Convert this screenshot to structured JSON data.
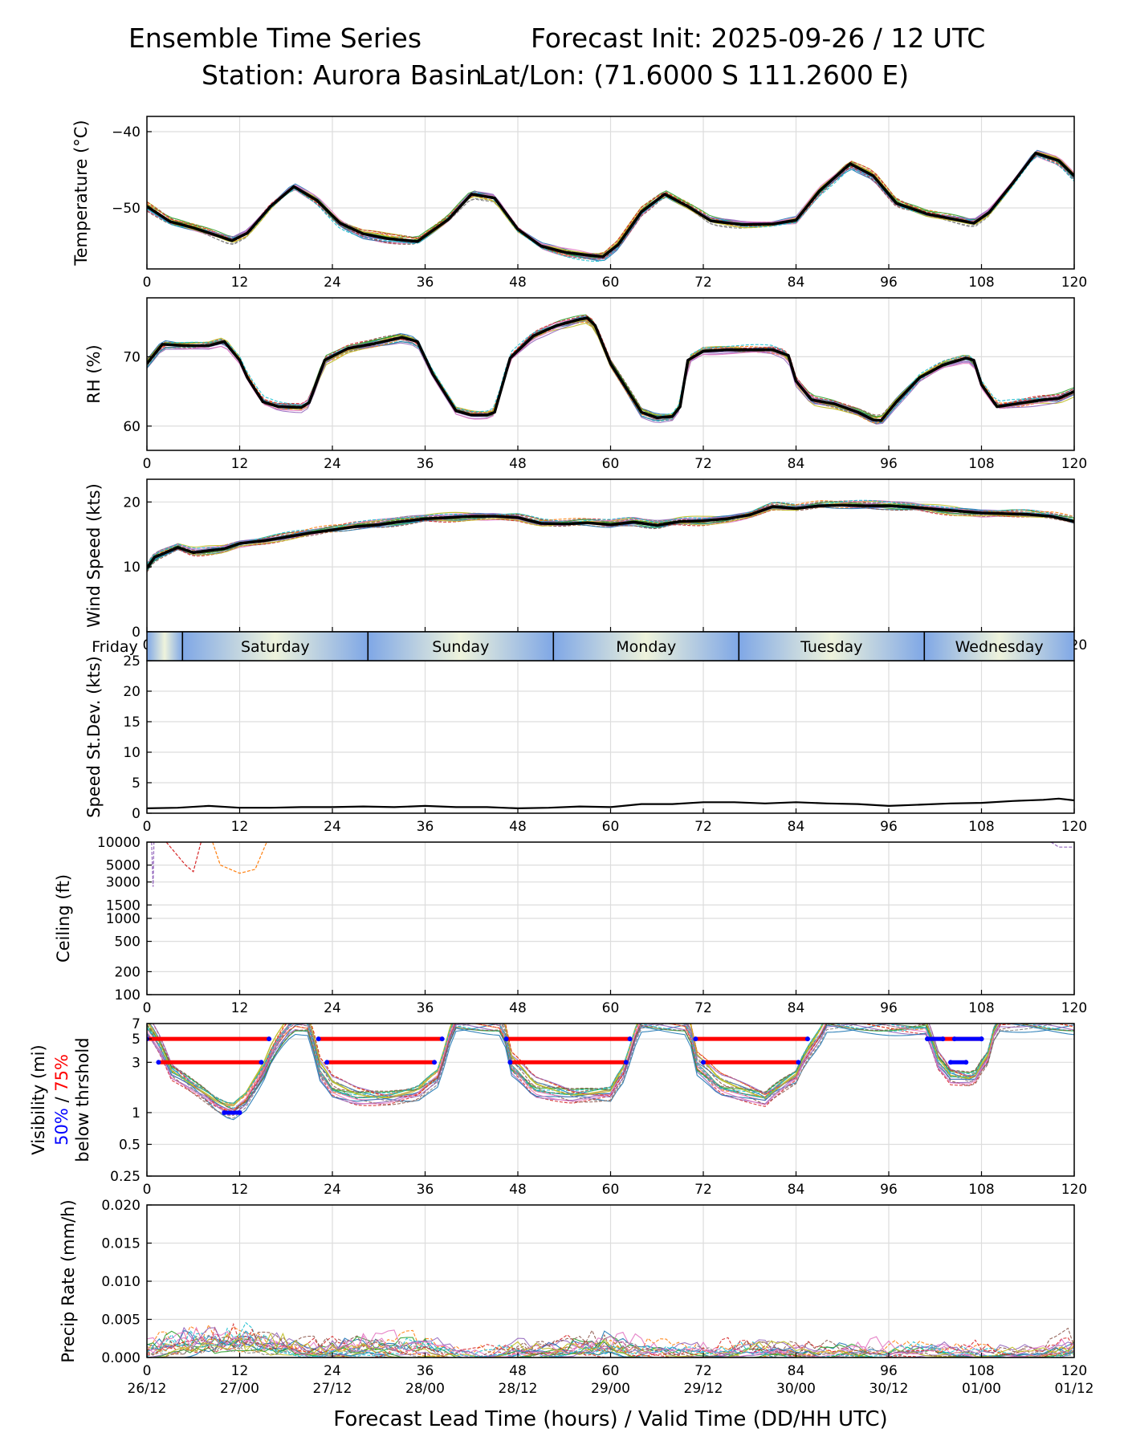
{
  "header": {
    "title": "Ensemble Time Series",
    "init": "Forecast Init: 2025-09-26 / 12 UTC",
    "station": "Station: Aurora Basin",
    "latlon": "Lat/Lon: (71.6000 S 111.2600 E)"
  },
  "xaxis": {
    "label": "Forecast Lead Time (hours) / Valid Time (DD/HH UTC)",
    "ticks": [
      0,
      12,
      24,
      36,
      48,
      60,
      72,
      84,
      96,
      108,
      120
    ],
    "valid_times": [
      "26/12",
      "27/00",
      "27/12",
      "28/00",
      "28/12",
      "29/00",
      "29/12",
      "30/00",
      "30/12",
      "01/00",
      "01/12"
    ],
    "range": [
      0,
      120
    ]
  },
  "day_bar": {
    "days": [
      "Friday",
      "Saturday",
      "Sunday",
      "Monday",
      "Tuesday",
      "Wednesday"
    ],
    "boundaries_hours": [
      4.6,
      28.6,
      52.6,
      76.6,
      100.6
    ]
  },
  "colors": {
    "mean": "#000000",
    "members": [
      "#1f77b4",
      "#ff7f0e",
      "#2ca02c",
      "#d62728",
      "#9467bd",
      "#8c564b",
      "#e377c2",
      "#7f7f7f",
      "#bcbd22",
      "#17becf"
    ],
    "vis_75": "#ff0000",
    "vis_50": "#0000ff",
    "grid": "#dddddd"
  },
  "chart_data": [
    {
      "id": "temperature",
      "type": "line",
      "ylabel": "Temperature (°C)",
      "ylim": [
        -58,
        -38
      ],
      "yticks": [
        -40,
        -50
      ],
      "tick_labels": [
        "−40",
        "−50"
      ],
      "mean_series": {
        "x": [
          0,
          3,
          6,
          9,
          11,
          13,
          16,
          19,
          22,
          25,
          28,
          31,
          35,
          39,
          42,
          45,
          48,
          51,
          54,
          57,
          59,
          61,
          64,
          67,
          70,
          73,
          77,
          81,
          84,
          87,
          91,
          94,
          97,
          101,
          104,
          107,
          109,
          112,
          115,
          118,
          120
        ],
        "y": [
          -49.8,
          -51.8,
          -52.6,
          -53.6,
          -54.3,
          -53.3,
          -49.8,
          -47.2,
          -49.0,
          -52.0,
          -53.4,
          -54.0,
          -54.4,
          -51.5,
          -48.2,
          -48.7,
          -52.8,
          -55.0,
          -55.8,
          -56.2,
          -56.4,
          -54.8,
          -50.5,
          -48.2,
          -49.8,
          -51.7,
          -52.2,
          -52.1,
          -51.6,
          -47.8,
          -44.2,
          -45.8,
          -49.4,
          -50.8,
          -51.4,
          -52.0,
          -50.6,
          -46.8,
          -42.8,
          -43.8,
          -45.8
        ]
      }
    },
    {
      "id": "rh",
      "type": "line",
      "ylabel": "RH (%)",
      "ylim": [
        56.5,
        78.5
      ],
      "yticks": [
        70,
        60
      ],
      "tick_labels": [
        "70",
        "60"
      ],
      "mean_series": {
        "x": [
          0,
          2,
          5,
          8,
          10,
          12,
          13,
          15,
          17,
          20,
          21,
          23,
          26,
          29,
          33,
          35,
          37,
          40,
          42,
          44,
          45,
          47,
          50,
          53,
          56,
          57,
          58,
          60,
          62,
          64,
          66,
          68,
          69,
          70,
          72,
          75,
          78,
          81,
          83,
          84,
          86,
          89,
          92,
          94,
          95,
          97,
          100,
          103,
          106,
          107,
          108,
          110,
          113,
          116,
          118,
          120
        ],
        "y": [
          69,
          71.8,
          71.6,
          71.6,
          72.2,
          69.5,
          67,
          63.5,
          62.8,
          62.7,
          63.4,
          69.5,
          71.2,
          71.8,
          72.8,
          72.2,
          67.5,
          62.2,
          61.6,
          61.6,
          62.0,
          69.8,
          73.0,
          74.5,
          75.4,
          75.6,
          74.5,
          69.0,
          65.5,
          62.0,
          61.2,
          61.4,
          62.8,
          69.5,
          70.8,
          71.0,
          71.0,
          71.0,
          70.2,
          66.5,
          63.8,
          63.2,
          62.0,
          60.9,
          60.8,
          63.5,
          67.0,
          68.8,
          69.8,
          69.5,
          66.0,
          62.8,
          63.3,
          63.8,
          64.0,
          65.0
        ]
      }
    },
    {
      "id": "wind_speed",
      "type": "line",
      "ylabel": "Wind Speed (kts)",
      "ylim": [
        0,
        23.5
      ],
      "yticks": [
        0,
        10,
        20
      ],
      "tick_labels": [
        "0",
        "10",
        "20"
      ],
      "mean_series": {
        "x": [
          0,
          1,
          2,
          4,
          6,
          8,
          10,
          12,
          15,
          18,
          21,
          24,
          27,
          30,
          33,
          36,
          39,
          42,
          45,
          48,
          51,
          54,
          57,
          60,
          63,
          66,
          69,
          72,
          75,
          78,
          81,
          84,
          87,
          90,
          93,
          96,
          99,
          102,
          105,
          108,
          111,
          114,
          117,
          120
        ],
        "y": [
          9.8,
          11.5,
          12.0,
          13.0,
          12.2,
          12.5,
          12.8,
          13.6,
          14.0,
          14.6,
          15.2,
          15.7,
          16.2,
          16.5,
          17.0,
          17.4,
          17.6,
          17.8,
          17.8,
          17.6,
          16.7,
          16.6,
          16.8,
          16.5,
          16.9,
          16.4,
          17.0,
          17.1,
          17.4,
          18.0,
          19.3,
          19.0,
          19.4,
          19.5,
          19.4,
          19.4,
          19.2,
          18.9,
          18.6,
          18.3,
          18.2,
          18.1,
          17.8,
          17.0
        ]
      }
    },
    {
      "id": "speed_stdev",
      "type": "line",
      "ylabel": "Speed St.Dev. (kts)",
      "ylim": [
        0,
        25
      ],
      "yticks": [
        0,
        5,
        10,
        15,
        20,
        25
      ],
      "tick_labels": [
        "0",
        "5",
        "10",
        "15",
        "20",
        "25"
      ],
      "mean_series": {
        "x": [
          0,
          4,
          8,
          12,
          16,
          20,
          24,
          28,
          32,
          36,
          40,
          44,
          48,
          52,
          56,
          60,
          64,
          68,
          72,
          76,
          80,
          84,
          88,
          92,
          96,
          100,
          104,
          108,
          112,
          116,
          118,
          120
        ],
        "y": [
          0.8,
          0.9,
          1.2,
          0.9,
          0.9,
          1.0,
          1.0,
          1.1,
          1.0,
          1.2,
          1.0,
          1.0,
          0.8,
          0.9,
          1.1,
          1.0,
          1.5,
          1.5,
          1.8,
          1.8,
          1.6,
          1.8,
          1.6,
          1.5,
          1.2,
          1.4,
          1.6,
          1.7,
          2.0,
          2.2,
          2.4,
          2.1
        ]
      }
    },
    {
      "id": "ceiling",
      "type": "line",
      "ylabel": "Ceiling (ft)",
      "yscale": "log",
      "ylim": [
        100,
        10000
      ],
      "yticks": [
        10000,
        5000,
        3000,
        1500,
        1000,
        500,
        200,
        100
      ],
      "tick_labels": [
        "10000",
        "5000",
        "3000",
        "1500",
        "1000",
        "500",
        "200",
        "100"
      ],
      "member_series": [
        {
          "x": [
            0.6,
            0.8,
            0.9
          ],
          "y": [
            10000,
            2600,
            10000
          ]
        },
        {
          "x": [
            2.5,
            5,
            6,
            7
          ],
          "y": [
            10000,
            5000,
            4100,
            10000
          ]
        },
        {
          "x": [
            8.5,
            9.5,
            12,
            14,
            15.5
          ],
          "y": [
            10000,
            5000,
            3900,
            4400,
            10000
          ]
        },
        {
          "x": [
            117,
            118,
            120
          ],
          "y": [
            10000,
            8600,
            8600
          ]
        }
      ]
    },
    {
      "id": "visibility",
      "type": "line",
      "ylabel_lines": [
        "Visibility (mi)",
        "50% / 75%",
        "below thrshold"
      ],
      "yscale": "log",
      "ylim": [
        0.25,
        7
      ],
      "yticks": [
        7,
        5,
        3,
        1,
        0.5,
        0.25
      ],
      "tick_labels": [
        "7",
        "5",
        "3",
        "1",
        "0.5",
        "0.25"
      ],
      "mean_series": {
        "x": [
          0,
          3,
          6,
          9,
          11,
          13,
          15,
          17,
          19,
          21,
          22,
          24,
          27,
          31,
          35,
          38,
          40,
          46,
          47,
          50,
          55,
          60,
          62,
          64,
          70,
          71,
          74,
          80,
          84,
          87,
          88,
          101,
          102,
          104,
          107,
          109,
          110
        ],
        "y": [
          7,
          2.6,
          1.8,
          1.2,
          1.0,
          1.3,
          2.2,
          4.5,
          7,
          7,
          2.8,
          1.8,
          1.5,
          1.4,
          1.5,
          2.2,
          7,
          7,
          3.0,
          1.8,
          1.5,
          1.5,
          2.5,
          7,
          7,
          3.0,
          1.9,
          1.4,
          2.2,
          5.0,
          7,
          7,
          3.5,
          2.3,
          2.1,
          3.5,
          7
        ]
      },
      "threshold_bars": [
        {
          "threshold": 5,
          "x_start": 0,
          "x_end": 15.8,
          "level": "75%"
        },
        {
          "threshold": 3,
          "x_start": 1.5,
          "x_end": 14.8,
          "level": "75%"
        },
        {
          "threshold": 1,
          "x_start": 10,
          "x_end": 12,
          "level": "50%"
        },
        {
          "threshold": 5,
          "x_start": 22.2,
          "x_end": 38.2,
          "level": "75%"
        },
        {
          "threshold": 3,
          "x_start": 23.3,
          "x_end": 37.2,
          "level": "75%"
        },
        {
          "threshold": 5,
          "x_start": 46.5,
          "x_end": 62.5,
          "level": "75%"
        },
        {
          "threshold": 3,
          "x_start": 47,
          "x_end": 62,
          "level": "75%"
        },
        {
          "threshold": 5,
          "x_start": 71,
          "x_end": 85.5,
          "level": "75%"
        },
        {
          "threshold": 3,
          "x_start": 72,
          "x_end": 84.3,
          "level": "75%"
        },
        {
          "threshold": 5,
          "x_start": 101,
          "x_end": 108,
          "level": "75%"
        },
        {
          "threshold": 5,
          "x_start": 101,
          "x_end": 103,
          "level": "50%"
        },
        {
          "threshold": 5,
          "x_start": 104.5,
          "x_end": 108,
          "level": "50%"
        },
        {
          "threshold": 3,
          "x_start": 104,
          "x_end": 106,
          "level": "50%"
        }
      ]
    },
    {
      "id": "precip_rate",
      "type": "line",
      "ylabel": "Precip Rate (mm/h)",
      "ylim": [
        0,
        0.02
      ],
      "yticks": [
        0.0,
        0.005,
        0.01,
        0.015,
        0.02
      ],
      "tick_labels": [
        "0.000",
        "0.005",
        "0.010",
        "0.015",
        "0.020"
      ],
      "mean_series": {
        "x": [
          0,
          3,
          6,
          9,
          12,
          15,
          18,
          21,
          24,
          30,
          36,
          40,
          44,
          48,
          54,
          60,
          64,
          68,
          72,
          78,
          84,
          88,
          96,
          100,
          106,
          110,
          115,
          120
        ],
        "y": [
          0.0005,
          0.0012,
          0.0018,
          0.0022,
          0.0025,
          0.002,
          0.0015,
          0.001,
          0.0008,
          0.001,
          0.0008,
          0.0003,
          0.0002,
          0.0008,
          0.0011,
          0.0011,
          0.0004,
          0.0002,
          0.0006,
          0.001,
          0.0008,
          0.0002,
          0.0001,
          0.0004,
          0.0008,
          0.0003,
          0.0004,
          0.0012
        ]
      }
    }
  ]
}
